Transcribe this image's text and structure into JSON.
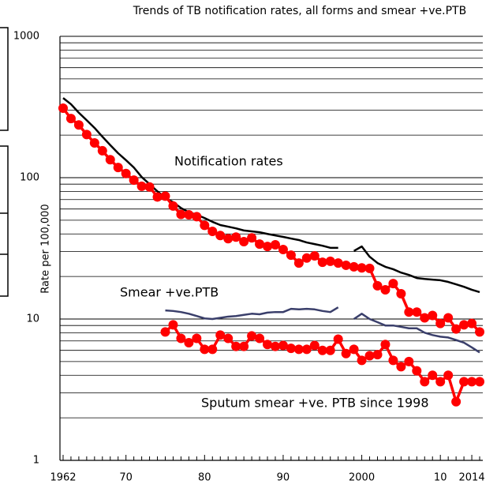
{
  "chart_data": {
    "type": "line",
    "title": "Trends of TB notification rates, all forms and smear +ve.PTB",
    "y_label": "Rate per 100,000",
    "annotations": [
      "Notification rates",
      "Smear +ve.PTB",
      "Sputum smear +ve. PTB since 1998"
    ],
    "ylog": true,
    "grid": true,
    "xlim": [
      1961.6,
      2015.4
    ],
    "ylim": [
      1,
      1000
    ],
    "yticks": [
      1,
      10,
      100,
      1000
    ],
    "y_minor_ticks": [
      2,
      3,
      4,
      5,
      6,
      7,
      8,
      9,
      20,
      30,
      40,
      50,
      60,
      70,
      80,
      90,
      200,
      300,
      400,
      500,
      600,
      700,
      800,
      900
    ],
    "xticks": [
      1962,
      {
        "value": 1970,
        "label": "70"
      },
      {
        "value": 1980,
        "label": "80"
      },
      {
        "value": 1990,
        "label": "90"
      },
      2000,
      {
        "value": 2010,
        "label": "10"
      },
      2014
    ],
    "x_minor_ticks": [
      1963,
      1964,
      1965,
      1966,
      1967,
      1968,
      1969,
      1971,
      1972,
      1973,
      1974,
      1975,
      1976,
      1977,
      1978,
      1979,
      1981,
      1982,
      1983,
      1984,
      1985,
      1986,
      1987,
      1988,
      1989,
      1991,
      1992,
      1993,
      1994,
      1995,
      1996,
      1997,
      1998,
      1999,
      2001,
      2002,
      2003,
      2004,
      2005,
      2006,
      2007,
      2008,
      2009,
      2011,
      2012,
      2013,
      2015
    ],
    "series": [
      {
        "color": "#000000",
        "style": "line",
        "x": [
          1962,
          1963,
          1964,
          1965,
          1966,
          1967,
          1968,
          1969,
          1970,
          1971,
          1972,
          1973,
          1974,
          1975,
          1976,
          1977,
          1978,
          1979,
          1980,
          1981,
          1982,
          1983,
          1984,
          1985,
          1986,
          1987,
          1988,
          1989,
          1990,
          1991,
          1992,
          1993,
          1994,
          1995,
          1996,
          1997,
          1998,
          1999,
          2000,
          2001,
          2002,
          2003,
          2004,
          2005,
          2006,
          2007,
          2008,
          2009,
          2010,
          2011,
          2012,
          2013,
          2014,
          2015
        ],
        "values": [
          366,
          331,
          288,
          255,
          225,
          195,
          170,
          149,
          133,
          118,
          101,
          90,
          80,
          72,
          67,
          61,
          57,
          54.6,
          51.8,
          48.7,
          46.2,
          45,
          43.8,
          42.3,
          41.7,
          41.1,
          40,
          39,
          38.1,
          37.1,
          36.2,
          34.8,
          33.9,
          33,
          31.9,
          31.9,
          null,
          30.3,
          32.6,
          27.6,
          24.9,
          23.4,
          22.5,
          21.3,
          20.5,
          19.5,
          19.2,
          19,
          18.8,
          18.3,
          17.6,
          16.9,
          16.1,
          15.5
        ]
      },
      {
        "color": "#ff0000",
        "style": "dots",
        "x": [
          1962,
          1963,
          1964,
          1965,
          1966,
          1967,
          1968,
          1969,
          1970,
          1971,
          1972,
          1973,
          1974,
          1975,
          1976,
          1977,
          1978,
          1979,
          1980,
          1981,
          1982,
          1983,
          1984,
          1985,
          1986,
          1987,
          1988,
          1989,
          1990,
          1991,
          1992,
          1993,
          1994,
          1995,
          1996,
          1997,
          1998,
          1999,
          2000,
          2001,
          2002,
          2003,
          2004,
          2005,
          2006,
          2007,
          2008,
          2009,
          2010,
          2011,
          2012,
          2013,
          2014,
          2015
        ],
        "values": [
          310,
          262,
          236,
          202,
          176,
          155,
          134,
          118,
          107,
          96,
          87,
          86,
          73,
          74,
          63,
          55,
          54.6,
          53,
          46,
          41.7,
          39,
          37,
          38,
          35.3,
          37.5,
          33.9,
          32.6,
          33.5,
          31,
          28.3,
          24.9,
          27,
          28,
          25.2,
          25.6,
          24.9,
          24,
          23.4,
          23,
          22.8,
          17.2,
          16.1,
          17.8,
          15.1,
          11.2,
          11.2,
          10.2,
          10.6,
          9.3,
          10.2,
          8.5,
          9.1,
          9.3,
          8.1
        ]
      },
      {
        "color": "#3a3f6b",
        "style": "line",
        "x": [
          1975,
          1976,
          1977,
          1978,
          1979,
          1980,
          1981,
          1982,
          1983,
          1984,
          1985,
          1986,
          1987,
          1988,
          1989,
          1990,
          1991,
          1992,
          1993,
          1994,
          1995,
          1996,
          1997,
          1998,
          1999,
          2000,
          2001,
          2002,
          2003,
          2004,
          2005,
          2006,
          2007,
          2008,
          2009,
          2010,
          2011,
          2012,
          2013,
          2014,
          2015
        ],
        "values": [
          11.5,
          11.4,
          11.2,
          10.9,
          10.5,
          10.1,
          10,
          10.2,
          10.4,
          10.5,
          10.7,
          10.9,
          10.8,
          11.1,
          11.2,
          11.2,
          11.8,
          11.7,
          11.8,
          11.7,
          11.4,
          11.2,
          12.1,
          null,
          10,
          10.9,
          10,
          9.5,
          9,
          9,
          8.8,
          8.6,
          8.6,
          8,
          7.7,
          7.5,
          7.4,
          7.1,
          6.8,
          6.3,
          5.8
        ]
      },
      {
        "color": "#ff0000",
        "style": "dots",
        "x": [
          1975,
          1976,
          1977,
          1978,
          1979,
          1980,
          1981,
          1982,
          1983,
          1984,
          1985,
          1986,
          1987,
          1988,
          1989,
          1990,
          1991,
          1992,
          1993,
          1994,
          1995,
          1996,
          1997,
          1998,
          1999,
          2000,
          2001,
          2002,
          2003,
          2004,
          2005,
          2006,
          2007,
          2008,
          2009,
          2010,
          2011,
          2012,
          2013,
          2014,
          2015
        ],
        "values": [
          8.1,
          9.1,
          7.3,
          6.8,
          7.3,
          6.1,
          6.1,
          7.7,
          7.3,
          6.4,
          6.4,
          7.6,
          7.3,
          6.6,
          6.4,
          6.5,
          6.2,
          6.1,
          6.1,
          6.5,
          6,
          6,
          7.2,
          5.7,
          6.1,
          5.1,
          5.5,
          5.6,
          6.6,
          5.1,
          4.6,
          5,
          4.3,
          3.6,
          4,
          3.6,
          4,
          2.6,
          3.6,
          3.6,
          3.6
        ]
      }
    ]
  }
}
